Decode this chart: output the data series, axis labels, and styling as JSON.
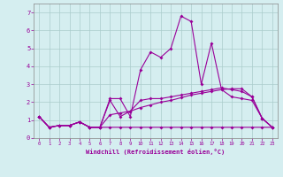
{
  "x": [
    0,
    1,
    2,
    3,
    4,
    5,
    6,
    7,
    8,
    9,
    10,
    11,
    12,
    13,
    14,
    15,
    16,
    17,
    18,
    19,
    20,
    21,
    22,
    23
  ],
  "line1": [
    1.2,
    0.6,
    0.7,
    0.7,
    0.9,
    0.6,
    0.6,
    2.2,
    2.2,
    1.2,
    3.8,
    4.8,
    4.5,
    5.0,
    6.8,
    6.5,
    3.0,
    5.3,
    2.7,
    2.3,
    2.2,
    2.1,
    1.1,
    0.6
  ],
  "line2": [
    1.2,
    0.6,
    0.7,
    0.7,
    0.9,
    0.6,
    0.6,
    0.6,
    0.6,
    0.6,
    0.6,
    0.6,
    0.6,
    0.6,
    0.6,
    0.6,
    0.6,
    0.6,
    0.6,
    0.6,
    0.6,
    0.6,
    0.6,
    0.6
  ],
  "line3": [
    1.2,
    0.6,
    0.7,
    0.7,
    0.9,
    0.6,
    0.6,
    1.3,
    1.4,
    1.5,
    1.7,
    1.85,
    2.0,
    2.1,
    2.25,
    2.4,
    2.5,
    2.6,
    2.7,
    2.75,
    2.75,
    2.3,
    1.1,
    0.6
  ],
  "line4": [
    1.2,
    0.6,
    0.7,
    0.7,
    0.9,
    0.6,
    0.6,
    2.1,
    1.2,
    1.5,
    2.1,
    2.2,
    2.2,
    2.3,
    2.4,
    2.5,
    2.6,
    2.7,
    2.8,
    2.7,
    2.6,
    2.3,
    1.1,
    0.6
  ],
  "bg_color": "#d5eef0",
  "line_color": "#990099",
  "grid_color": "#aacccc",
  "xlabel": "Windchill (Refroidissement éolien,°C)",
  "xlim": [
    -0.5,
    23.5
  ],
  "ylim": [
    0,
    7.5
  ],
  "xticks": [
    0,
    1,
    2,
    3,
    4,
    5,
    6,
    7,
    8,
    9,
    10,
    11,
    12,
    13,
    14,
    15,
    16,
    17,
    18,
    19,
    20,
    21,
    22,
    23
  ],
  "yticks": [
    0,
    1,
    2,
    3,
    4,
    5,
    6,
    7
  ]
}
